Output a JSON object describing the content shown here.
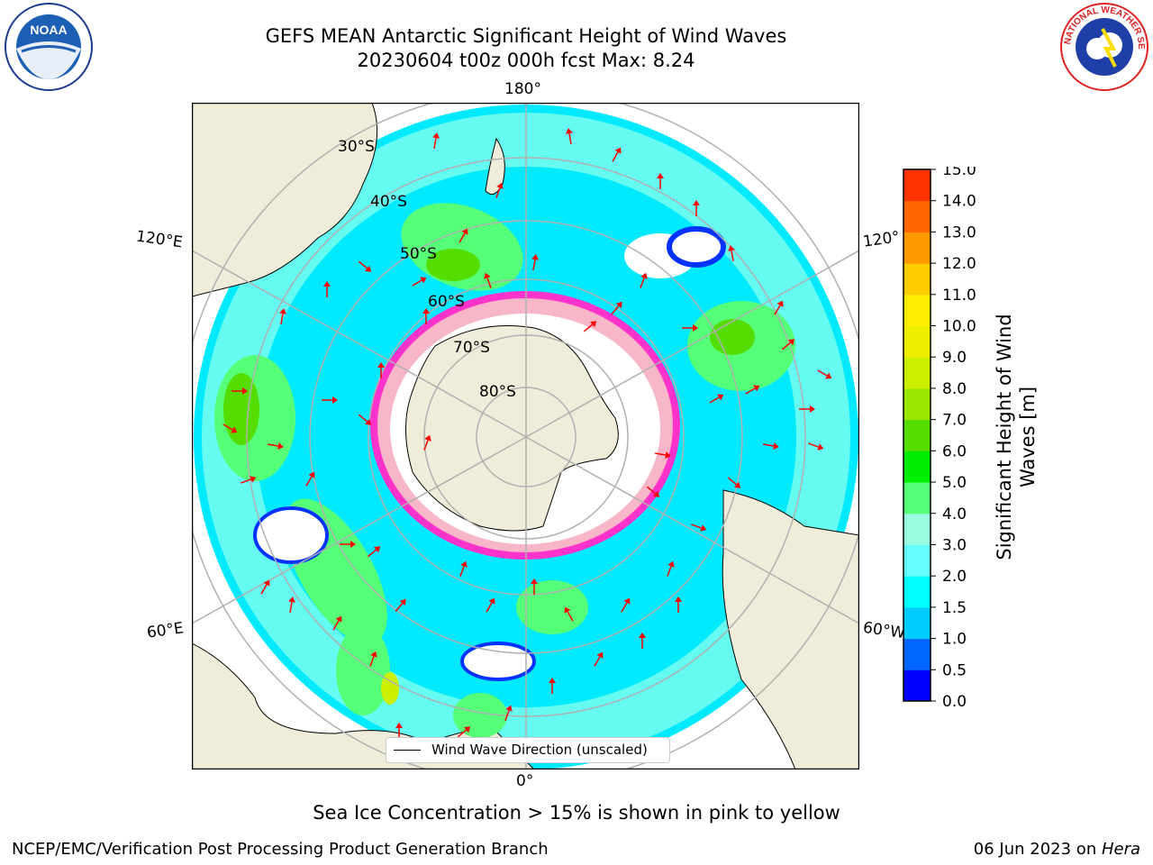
{
  "header": {
    "title_line1": "GEFS MEAN Antarctic Significant Height of Wind Waves",
    "title_line2": "20230604 t00z 000h fcst   Max: 8.24"
  },
  "logos": {
    "noaa_text": "NOAA",
    "nws_text": "NATIONAL WEATHER SERVICE"
  },
  "map": {
    "projection": "south-polar-stereographic",
    "longitude_labels": {
      "top": "180°",
      "bottom": "0°",
      "left_upper": "120°E",
      "left_lower": "60°E",
      "right_upper": "120°",
      "right_lower": "60°W"
    },
    "latitude_labels": [
      "30°S",
      "40°S",
      "50°S",
      "60°S",
      "70°S",
      "80°S"
    ],
    "colors": {
      "land": "#efedd9",
      "grid": "#b0b0b0",
      "arrow": "#ff0000",
      "sea_ice_edge": "#ff33cc",
      "sea_ice_fill": "#f7b7c9"
    }
  },
  "legend": {
    "line_label": "Wind Wave Direction (unscaled)"
  },
  "colorbar": {
    "title": "Significant Height of Wind Waves [m]",
    "title_line1": "Significant Height of Wind",
    "title_line2": "Waves [m]",
    "ticks": [
      "0.0",
      "0.5",
      "1.0",
      "1.5",
      "2.0",
      "3.0",
      "4.0",
      "5.0",
      "6.0",
      "7.0",
      "8.0",
      "9.0",
      "10.0",
      "11.0",
      "12.0",
      "13.0",
      "14.0",
      "15.0"
    ],
    "colors": [
      "#0000ff",
      "#0066ff",
      "#00ccff",
      "#00ffff",
      "#66ffff",
      "#99ffe0",
      "#55ff77",
      "#00ee00",
      "#55dd00",
      "#99e600",
      "#ccee00",
      "#eeee00",
      "#ffee00",
      "#ffcc00",
      "#ff9900",
      "#ff6600",
      "#ff3300"
    ]
  },
  "caption": "Sea Ice Concentration > 15% is shown in pink to yellow",
  "footer": {
    "left": "NCEP/EMC/Verification Post Processing Product Generation Branch",
    "date": "06 Jun 2023 on ",
    "machine": "Hera"
  }
}
